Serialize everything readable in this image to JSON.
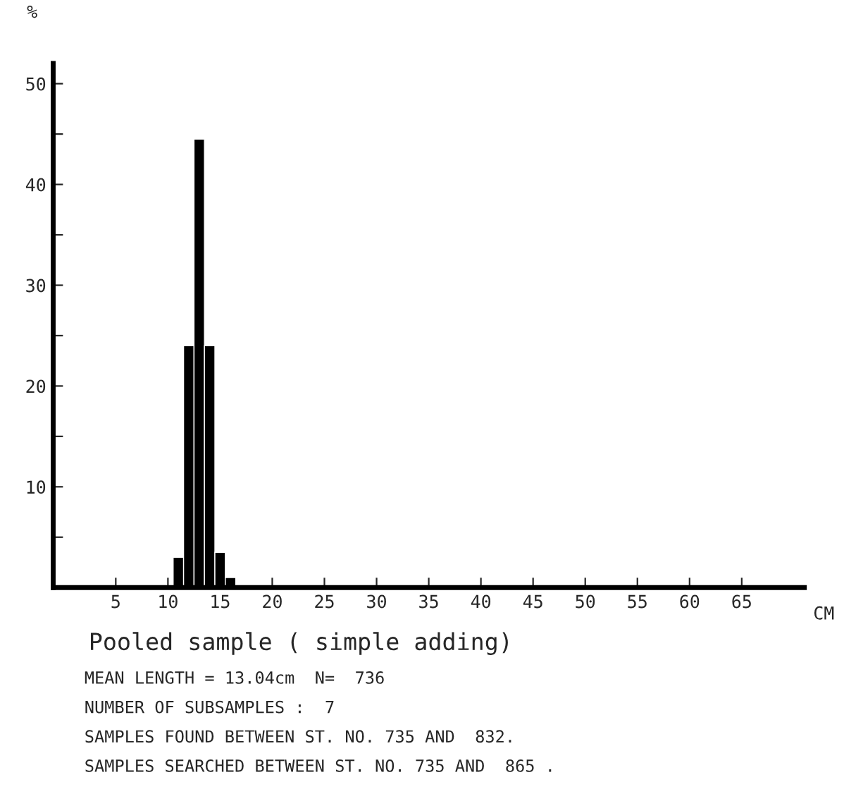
{
  "chart_data": {
    "type": "histogram",
    "title": "Pooled sample ( simple adding)",
    "ylabel": "%",
    "xlabel": "CM",
    "bins": [
      10.5,
      11.5,
      12.5,
      13.5,
      14.5,
      15.5,
      16.5
    ],
    "values": [
      3,
      24,
      44.5,
      24,
      3.5,
      1
    ],
    "color": "#000000",
    "xlim": [
      -1,
      71
    ],
    "ylim": [
      0,
      52
    ],
    "xticks": [
      5,
      10,
      15,
      20,
      25,
      30,
      35,
      40,
      45,
      50,
      55,
      60,
      65
    ],
    "yticks": [
      {
        "value": 5,
        "label": null
      },
      10,
      {
        "value": 15,
        "label": null
      },
      20,
      {
        "value": 25,
        "label": null
      },
      30,
      {
        "value": 35,
        "label": null
      },
      40,
      {
        "value": 45,
        "label": null
      },
      50
    ],
    "grid": false,
    "annotations": [
      "MEAN LENGTH = 13.04cm  N=  736",
      "NUMBER OF SUBSAMPLES :  7",
      "SAMPLES FOUND BETWEEN ST. NO. 735 AND  832.",
      "SAMPLES SEARCHED BETWEEN ST. NO. 735 AND  865 ."
    ]
  }
}
